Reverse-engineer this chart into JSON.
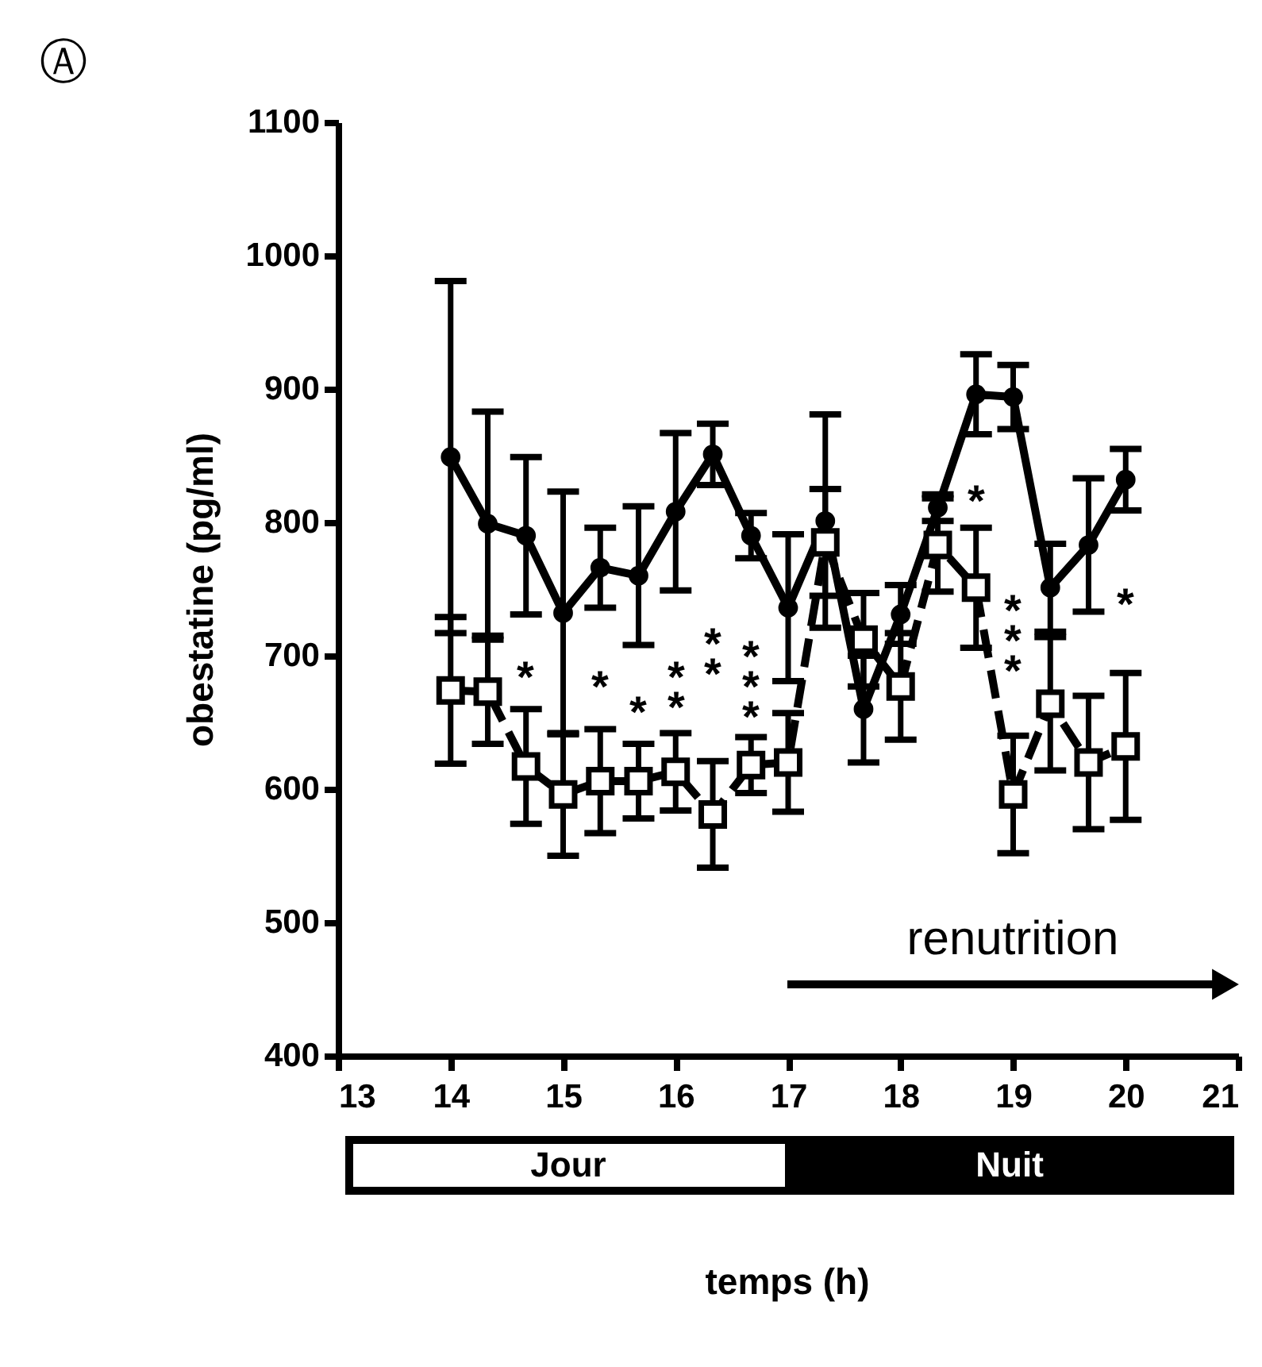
{
  "chart_data": {
    "type": "line",
    "ylabel": "obestatine (pg/ml)",
    "x": [
      14,
      14.33,
      14.67,
      15,
      15.33,
      15.67,
      16,
      16.33,
      16.67,
      17,
      17.33,
      17.67,
      18,
      18.33,
      18.67,
      19,
      19.33,
      19.67,
      20
    ],
    "series": [
      {
        "color": "#000000",
        "marker": "circle",
        "line_style": "solid",
        "values": [
          849,
          799,
          790,
          732,
          766,
          760,
          808,
          851,
          790,
          736,
          801,
          660,
          731,
          811,
          896,
          894,
          751,
          783,
          832
        ],
        "errors": [
          132,
          84,
          59,
          91,
          30,
          52,
          59,
          23,
          17,
          55,
          80,
          40,
          22,
          10,
          30,
          24,
          33,
          50,
          23
        ]
      },
      {
        "color": "#000000",
        "marker": "square",
        "line_style": "dashed",
        "values": [
          674,
          673,
          617,
          596,
          606,
          606,
          613,
          581,
          618,
          620,
          785,
          712,
          677,
          783,
          751,
          596,
          664,
          620,
          632
        ],
        "errors": [
          55,
          39,
          43,
          46,
          39,
          28,
          29,
          40,
          21,
          37,
          40,
          35,
          40,
          35,
          45,
          44,
          50,
          50,
          55
        ]
      }
    ],
    "xlim": [
      13,
      21
    ],
    "xticks": [
      13,
      14,
      15,
      16,
      17,
      18,
      19,
      20,
      21
    ],
    "ylim": [
      400,
      1100
    ],
    "yticks": [
      400,
      500,
      600,
      700,
      800,
      900,
      1000,
      1100
    ],
    "grid": false,
    "annotations": [
      "Ⓐ",
      "renutrition",
      "*",
      "*",
      "*",
      "*\n*",
      "*\n*",
      "*\n*\n*",
      "*",
      "*\n*\n*",
      "*",
      "Jour",
      "Nuit",
      "temps (h)"
    ]
  }
}
